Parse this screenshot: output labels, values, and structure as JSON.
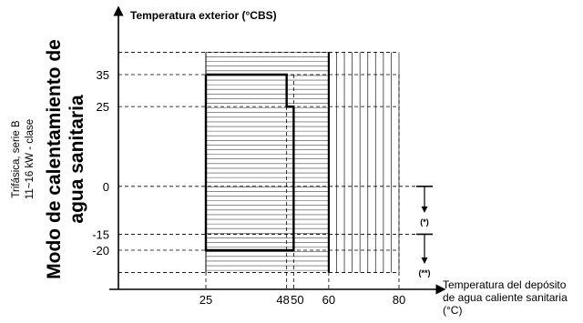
{
  "chart_data": {
    "type": "diagram",
    "title": "Temperatura exterior (°CBS)",
    "xlabel": [
      "Temperatura del depósito",
      "de agua caliente sanitaria",
      "(°C)"
    ],
    "side_title": [
      "Modo de calentamiento de",
      "agua sanitaria"
    ],
    "side_subtitle": [
      "Trifásica, serie B",
      "11~16 kW - clase"
    ],
    "x_ticks": [
      "25",
      "48",
      "50",
      "60",
      "80"
    ],
    "y_ticks": [
      "35",
      "25",
      "0",
      "-15",
      "-20"
    ],
    "x_values": [
      25,
      48,
      50,
      60,
      80
    ],
    "y_values": [
      35,
      25,
      0,
      -15,
      -20
    ],
    "ylim": [
      -27,
      42
    ],
    "xlim": [
      25,
      80
    ],
    "operating_region_outline": [
      [
        25,
        35
      ],
      [
        48,
        35
      ],
      [
        48,
        25
      ],
      [
        50,
        25
      ],
      [
        50,
        -20
      ],
      [
        25,
        -20
      ]
    ],
    "horizontal_hatch_region": {
      "x": [
        25,
        60
      ],
      "y": [
        -27,
        42
      ]
    },
    "vertical_hatch_region": {
      "x": [
        60,
        80
      ],
      "y": [
        -27,
        42
      ]
    },
    "annotations": [
      {
        "label": "(*)",
        "y_from": 0,
        "y_to": -8
      },
      {
        "label": "(**)",
        "y_from": -15,
        "y_to": -24
      }
    ]
  }
}
